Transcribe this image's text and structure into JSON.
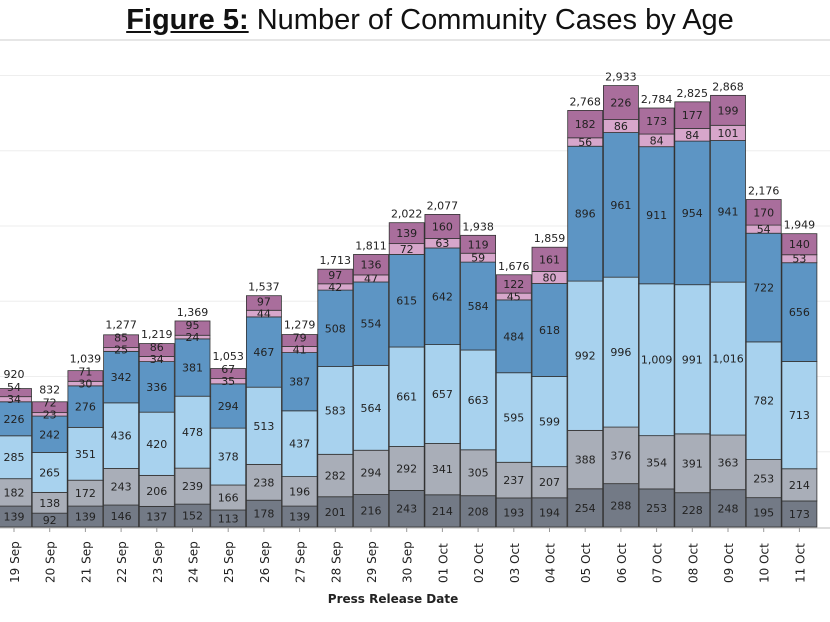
{
  "chart_data": {
    "type": "bar",
    "stacked": true,
    "title_prefix": "Figure 5:",
    "title": "Number of Community Cases by Age",
    "xlabel": "Press Release Date",
    "ylabel": "",
    "grid": true,
    "categories": [
      "19 Sep",
      "20 Sep",
      "21 Sep",
      "22 Sep",
      "23 Sep",
      "24 Sep",
      "25 Sep",
      "26 Sep",
      "27 Sep",
      "28 Sep",
      "29 Sep",
      "30 Sep",
      "01 Oct",
      "02 Oct",
      "03 Oct",
      "04 Oct",
      "05 Oct",
      "06 Oct",
      "07 Oct",
      "08 Oct",
      "09 Oct",
      "10 Oct",
      "11 Oct"
    ],
    "totals": [
      "920",
      "832",
      "1,039",
      "1,277",
      "1,219",
      "1,369",
      "1,053",
      "1,537",
      "1,279",
      "1,713",
      "1,811",
      "2,022",
      "2,077",
      "1,938",
      "1,676",
      "1,859",
      "2,768",
      "2,933",
      "2,784",
      "2,825",
      "2,868",
      "2,176",
      "1,949"
    ],
    "series": [
      {
        "color": "#737a86",
        "values": [
          139,
          92,
          139,
          146,
          137,
          152,
          113,
          178,
          139,
          201,
          216,
          243,
          214,
          208,
          193,
          194,
          254,
          288,
          253,
          228,
          248,
          195,
          173
        ]
      },
      {
        "color": "#a9aeb8",
        "values": [
          182,
          138,
          172,
          243,
          206,
          239,
          166,
          238,
          196,
          282,
          294,
          292,
          341,
          305,
          237,
          207,
          388,
          376,
          354,
          391,
          363,
          253,
          214
        ]
      },
      {
        "color": "#a8d2ee",
        "values": [
          285,
          265,
          351,
          436,
          420,
          478,
          378,
          513,
          437,
          583,
          564,
          661,
          657,
          663,
          595,
          599,
          992,
          996,
          1009,
          991,
          1016,
          782,
          713
        ]
      },
      {
        "color": "#5d95c4",
        "values": [
          226,
          242,
          276,
          342,
          336,
          381,
          294,
          467,
          387,
          508,
          554,
          615,
          642,
          584,
          484,
          618,
          896,
          961,
          911,
          954,
          941,
          722,
          656
        ]
      },
      {
        "color": "#d7a6cb",
        "values": [
          34,
          23,
          30,
          25,
          34,
          24,
          35,
          44,
          41,
          42,
          47,
          72,
          63,
          59,
          45,
          80,
          56,
          86,
          84,
          84,
          101,
          54,
          53
        ]
      },
      {
        "color": "#a96e9c",
        "values": [
          54,
          72,
          71,
          85,
          86,
          95,
          67,
          97,
          79,
          97,
          136,
          139,
          160,
          119,
          122,
          161,
          182,
          226,
          173,
          177,
          199,
          170,
          140
        ]
      }
    ]
  }
}
